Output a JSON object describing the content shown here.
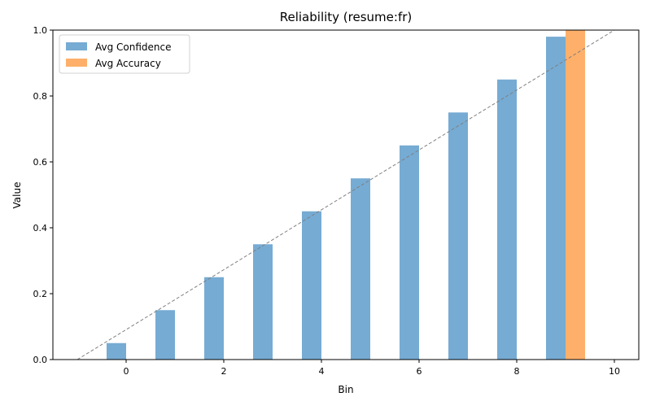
{
  "chart_data": {
    "type": "bar",
    "title": "Reliability (resume:fr)",
    "xlabel": "Bin",
    "ylabel": "Value",
    "xlim": [
      -1.5,
      10.5
    ],
    "ylim": [
      0,
      1
    ],
    "xticks": [
      0,
      2,
      4,
      6,
      8,
      10
    ],
    "yticks": [
      0.0,
      0.2,
      0.4,
      0.6,
      0.8,
      1.0
    ],
    "grid": false,
    "legend_position": "top-left",
    "bins": [
      0,
      1,
      2,
      3,
      4,
      5,
      6,
      7,
      8,
      9
    ],
    "series": [
      {
        "name": "Avg Confidence",
        "color": "#76abd3",
        "values": [
          0.05,
          0.15,
          0.25,
          0.35,
          0.45,
          0.55,
          0.65,
          0.75,
          0.85,
          0.98
        ]
      },
      {
        "name": "Avg Accuracy",
        "color": "#feb06b",
        "values": [
          0,
          0,
          0,
          0,
          0,
          0,
          0,
          0,
          0,
          1.0
        ]
      }
    ],
    "reference_line": {
      "style": "dashed",
      "color": "#808080",
      "from": [
        -1,
        0
      ],
      "to": [
        10,
        1
      ]
    }
  }
}
